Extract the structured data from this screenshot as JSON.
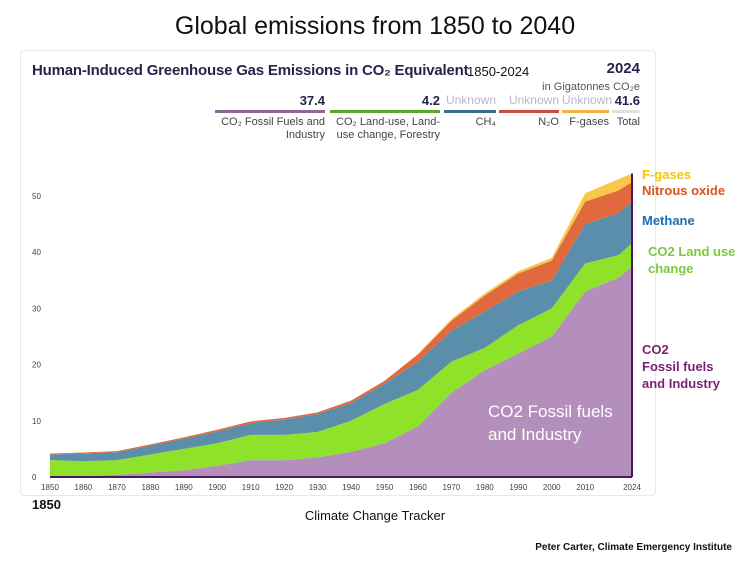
{
  "page_title": "Global emissions from 1850 to 2040",
  "header": {
    "headline": "Human-Induced Greenhouse Gas Emissions in CO₂ Equivalent",
    "range": "1850-2024",
    "year": "2024",
    "unit": "in Gigatonnes CO₂e"
  },
  "legend": [
    {
      "value": "37.4",
      "label": "CO₂ Fossil Fuels and Industry",
      "color": "#8b6a99"
    },
    {
      "value": "4.2",
      "label": "CO₂ Land-use, Land-use change, Forestry",
      "color": "#5aa82a"
    },
    {
      "value": "Unknown",
      "label": "CH₄",
      "color": "#3b6e8c"
    },
    {
      "value": "Unknown",
      "label": "N₂O",
      "color": "#c5503a"
    },
    {
      "value": "Unknown",
      "label": "F-gases",
      "color": "#f5b042"
    },
    {
      "value": "41.6",
      "label": "Total",
      "color": "#e0e0e0"
    }
  ],
  "right_labels": {
    "fgas": "F-gases",
    "n2o": "Nitrous oxide",
    "ch4": "Methane",
    "land1": "CO2 Land use",
    "land2": "change",
    "fossil1": "CO2",
    "fossil2": "Fossil fuels",
    "fossil3": "and Industry"
  },
  "inner_label": {
    "line1": "CO2 Fossil fuels",
    "line2": "and Industry"
  },
  "first_year": "1850",
  "source": "Climate Change Tracker",
  "credit": "Peter Carter, Climate Emergency Institute",
  "chart_data": {
    "type": "area",
    "stacked": true,
    "xlabel": "",
    "ylabel": "Gigatonnes CO2e",
    "xlim": [
      1850,
      2024
    ],
    "ylim": [
      0,
      55
    ],
    "x_ticks": [
      "1850",
      "1860",
      "1870",
      "1880",
      "1890",
      "1900",
      "1910",
      "1920",
      "1930",
      "1940",
      "1950",
      "1960",
      "1970",
      "1980",
      "1990",
      "2000",
      "2010",
      "2024"
    ],
    "y_ticks": [
      "0",
      "10",
      "20",
      "30",
      "40",
      "50"
    ],
    "x": [
      1850,
      1860,
      1870,
      1880,
      1890,
      1900,
      1910,
      1920,
      1930,
      1940,
      1950,
      1960,
      1970,
      1980,
      1990,
      2000,
      2010,
      2020,
      2024
    ],
    "series": [
      {
        "name": "CO2 Fossil fuels and Industry",
        "color": "#b48fbb",
        "values": [
          0,
          0.2,
          0.4,
          0.8,
          1.2,
          2,
          3,
          3,
          3.5,
          4.5,
          6,
          9,
          15,
          19,
          22,
          25,
          33,
          35.5,
          37.4
        ]
      },
      {
        "name": "CO2 Land use change",
        "color": "#8fe22a",
        "values": [
          3,
          2.6,
          2.6,
          3.2,
          3.8,
          4,
          4.5,
          4.5,
          4.5,
          5.5,
          7,
          6.5,
          5.5,
          4,
          5,
          5,
          5,
          4,
          4.2
        ]
      },
      {
        "name": "Methane",
        "color": "#5b8eab",
        "values": [
          1,
          1.4,
          1.4,
          1.6,
          1.8,
          2.1,
          2.1,
          2.7,
          3.2,
          3.2,
          3.6,
          5,
          5.5,
          6.5,
          6,
          5,
          7,
          7.5,
          7.4
        ]
      },
      {
        "name": "Nitrous oxide",
        "color": "#e2683e",
        "values": [
          0.15,
          0.15,
          0.2,
          0.2,
          0.25,
          0.3,
          0.3,
          0.3,
          0.3,
          0.4,
          0.5,
          1.3,
          1.8,
          2.8,
          3.2,
          3.5,
          4,
          4,
          3.5
        ]
      },
      {
        "name": "F-gases",
        "color": "#f7c84a",
        "values": [
          0,
          0,
          0,
          0,
          0,
          0,
          0,
          0,
          0,
          0,
          0,
          0.1,
          0.3,
          0.4,
          0.4,
          0.5,
          1.5,
          2,
          1.5
        ]
      }
    ]
  }
}
